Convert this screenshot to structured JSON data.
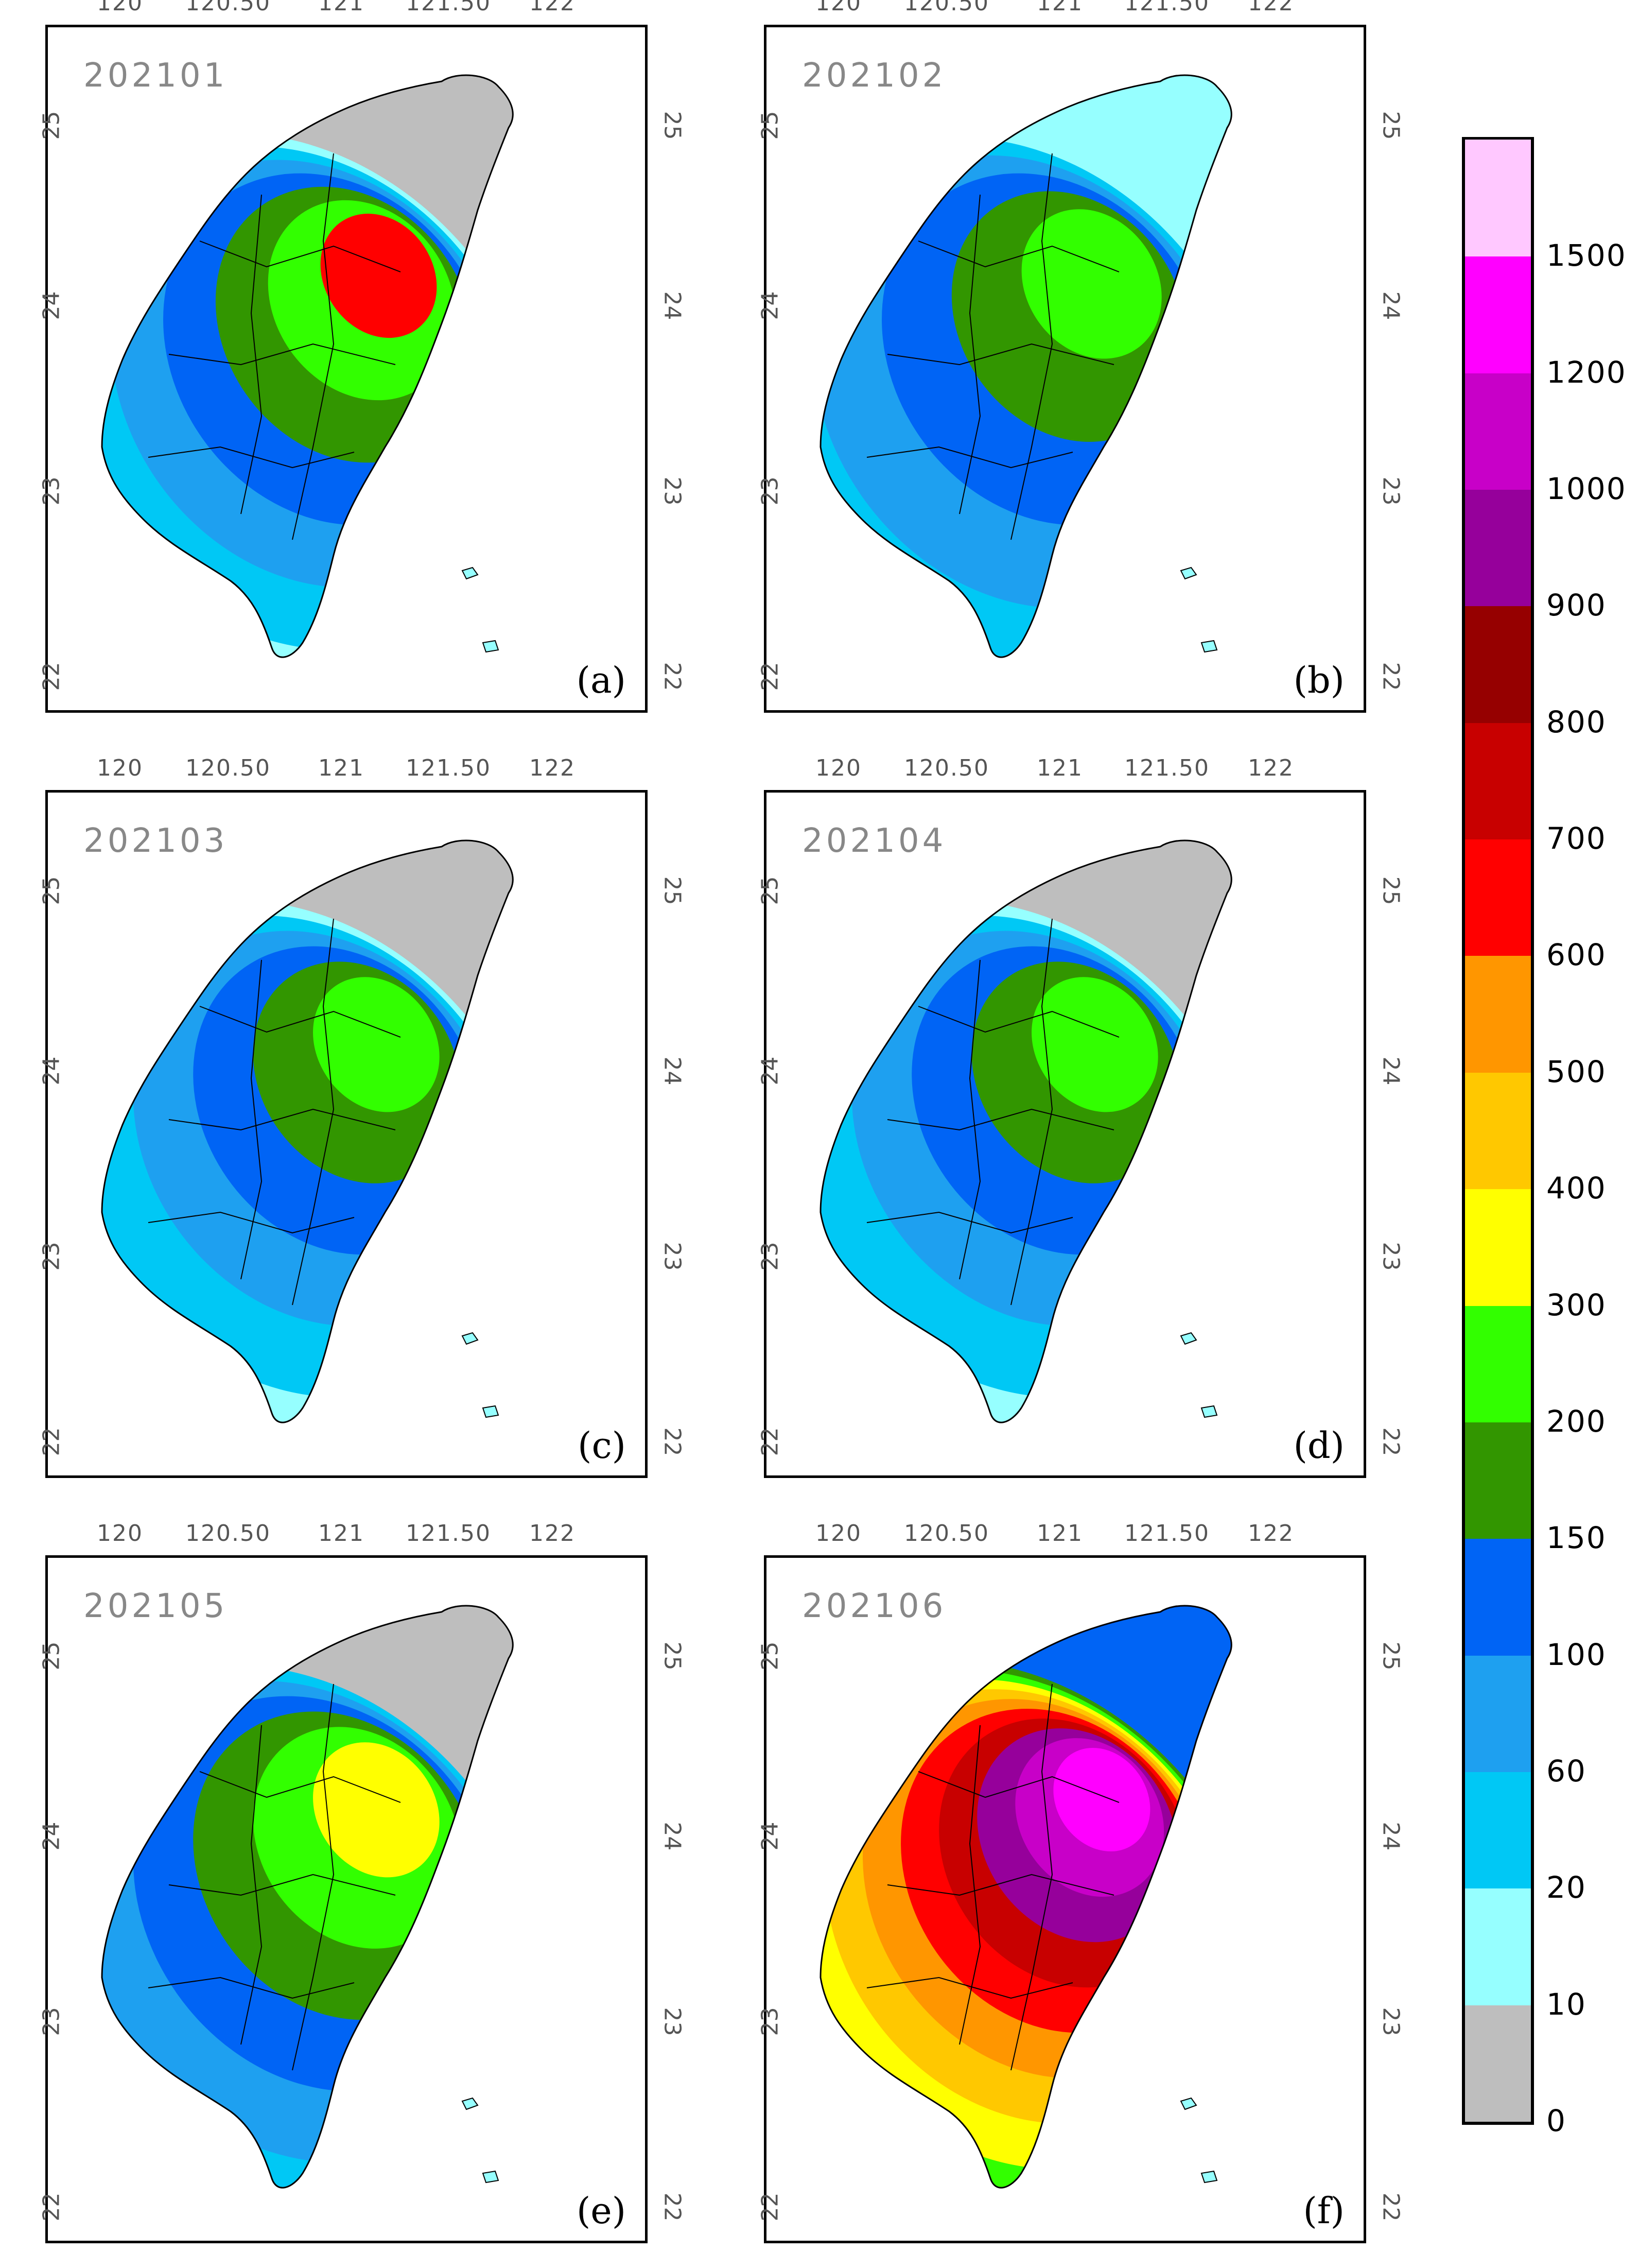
{
  "legend": {
    "labels": [
      "0",
      "10",
      "20",
      "60",
      "100",
      "150",
      "200",
      "300",
      "400",
      "500",
      "600",
      "700",
      "800",
      "900",
      "1000",
      "1200",
      "1500"
    ],
    "colors": [
      "#bebebe",
      "#96ffff",
      "#00c8f5",
      "#1ea0f0",
      "#0064f5",
      "#329600",
      "#32ff00",
      "#ffff00",
      "#ffc800",
      "#ff9600",
      "#ff0000",
      "#c80000",
      "#960000",
      "#96009b",
      "#c800c8",
      "#ff00ff",
      "#ffc8ff"
    ]
  },
  "axes": {
    "lon_ticks": [
      "120",
      "120.50",
      "121",
      "121.50",
      "122"
    ],
    "lat_ticks": [
      "25",
      "24",
      "23",
      "22"
    ]
  },
  "panels": [
    {
      "date": "202101",
      "label": "(a)",
      "fills": [
        "#bebebe",
        "#96ffff",
        "#00c8f5",
        "#1ea0f0",
        "#0064f5",
        "#329600",
        "#32ff00",
        "#ff0000"
      ]
    },
    {
      "date": "202102",
      "label": "(b)",
      "fills": [
        "#96ffff",
        "#00c8f5",
        "#1ea0f0",
        "#0064f5",
        "#329600",
        "#32ff00"
      ]
    },
    {
      "date": "202103",
      "label": "(c)",
      "fills": [
        "#bebebe",
        "#96ffff",
        "#00c8f5",
        "#1ea0f0",
        "#0064f5",
        "#329600",
        "#32ff00"
      ]
    },
    {
      "date": "202104",
      "label": "(d)",
      "fills": [
        "#bebebe",
        "#96ffff",
        "#00c8f5",
        "#1ea0f0",
        "#0064f5",
        "#329600",
        "#32ff00"
      ]
    },
    {
      "date": "202105",
      "label": "(e)",
      "fills": [
        "#bebebe",
        "#00c8f5",
        "#1ea0f0",
        "#0064f5",
        "#329600",
        "#32ff00",
        "#ffff00"
      ]
    },
    {
      "date": "202106",
      "label": "(f)",
      "fills": [
        "#0064f5",
        "#329600",
        "#32ff00",
        "#ffff00",
        "#ffc800",
        "#ff9600",
        "#ff0000",
        "#c80000",
        "#96009b",
        "#c800c8",
        "#ff00ff"
      ]
    }
  ]
}
